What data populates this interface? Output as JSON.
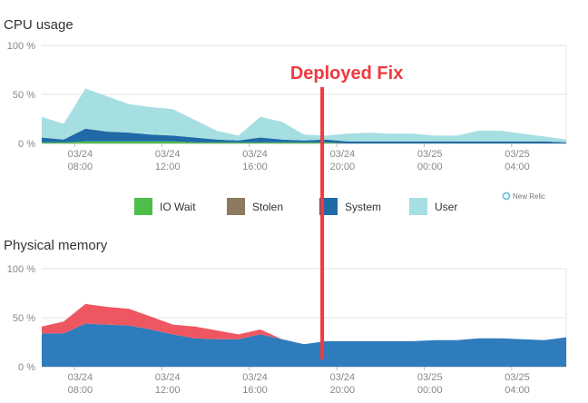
{
  "chart_data": [
    {
      "type": "area",
      "title": "CPU usage",
      "x": [
        "03/24 06:30",
        "03/24 07:30",
        "03/24 08:30",
        "03/24 09:30",
        "03/24 10:30",
        "03/24 11:30",
        "03/24 12:30",
        "03/24 13:30",
        "03/24 14:30",
        "03/24 15:30",
        "03/24 16:30",
        "03/24 17:30",
        "03/24 18:30",
        "03/24 19:30",
        "03/24 20:30",
        "03/24 21:30",
        "03/24 22:30",
        "03/24 23:30",
        "03/25 00:30",
        "03/25 01:30",
        "03/25 02:30",
        "03/25 03:30",
        "03/25 04:30",
        "03/25 05:30",
        "03/25 06:30"
      ],
      "series": [
        {
          "name": "IO Wait",
          "color": "#4dbe4a",
          "values": [
            1,
            1,
            2,
            2,
            2,
            2,
            2,
            1,
            1,
            1,
            1,
            1,
            1,
            1,
            0,
            0,
            0,
            0,
            0,
            0,
            0,
            0,
            0,
            0,
            0
          ]
        },
        {
          "name": "Stolen",
          "color": "#8c7a61",
          "values": [
            0,
            0,
            0,
            0,
            0,
            0,
            0,
            0,
            0,
            0,
            0,
            0,
            0,
            0,
            0,
            0,
            0,
            0,
            0,
            0,
            0,
            0,
            0,
            0,
            0
          ]
        },
        {
          "name": "System",
          "color": "#1f6aa7",
          "values": [
            5,
            3,
            13,
            10,
            9,
            7,
            6,
            5,
            3,
            2,
            5,
            3,
            2,
            3,
            2,
            2,
            2,
            2,
            2,
            2,
            2,
            2,
            2,
            2,
            1
          ]
        },
        {
          "name": "User",
          "color": "#a6dfe2",
          "values": [
            21,
            16,
            41,
            36,
            29,
            28,
            27,
            18,
            9,
            5,
            21,
            18,
            6,
            4,
            8,
            9,
            8,
            8,
            6,
            6,
            11,
            11,
            8,
            5,
            3
          ]
        }
      ],
      "yticks": [
        "0 %",
        "50 %",
        "100 %"
      ],
      "ylim": [
        0,
        100
      ],
      "xticks": [
        {
          "date": "03/24",
          "time": "08:00"
        },
        {
          "date": "03/24",
          "time": "12:00"
        },
        {
          "date": "03/24",
          "time": "16:00"
        },
        {
          "date": "03/24",
          "time": "20:00"
        },
        {
          "date": "03/25",
          "time": "00:00"
        },
        {
          "date": "03/25",
          "time": "04:00"
        }
      ],
      "legend_position": "bottom",
      "grid": true
    },
    {
      "type": "area",
      "title": "Physical memory",
      "x": [
        "03/24 06:30",
        "03/24 07:30",
        "03/24 08:30",
        "03/24 09:30",
        "03/24 10:30",
        "03/24 11:30",
        "03/24 12:30",
        "03/24 13:30",
        "03/24 14:30",
        "03/24 15:30",
        "03/24 16:30",
        "03/24 17:30",
        "03/24 18:30",
        "03/24 19:30",
        "03/24 20:30",
        "03/24 21:30",
        "03/24 22:30",
        "03/24 23:30",
        "03/25 00:30",
        "03/25 01:30",
        "03/25 02:30",
        "03/25 03:30",
        "03/25 04:30",
        "03/25 05:30",
        "03/25 06:30"
      ],
      "series": [
        {
          "color": "#2f7cbd",
          "values": [
            34,
            34,
            44,
            43,
            42,
            38,
            33,
            29,
            28,
            28,
            33,
            28,
            23,
            26,
            26,
            26,
            26,
            26,
            27,
            27,
            29,
            29,
            28,
            27,
            30
          ]
        },
        {
          "color": "#ee5761",
          "values": [
            7,
            12,
            20,
            18,
            17,
            13,
            10,
            12,
            9,
            5,
            5,
            0,
            0,
            0,
            0,
            0,
            0,
            0,
            0,
            0,
            0,
            0,
            0,
            0,
            0
          ]
        }
      ],
      "yticks": [
        "0 %",
        "50 %",
        "100 %"
      ],
      "ylim": [
        0,
        100
      ],
      "xticks": [
        {
          "date": "03/24",
          "time": "08:00"
        },
        {
          "date": "03/24",
          "time": "12:00"
        },
        {
          "date": "03/24",
          "time": "16:00"
        },
        {
          "date": "03/24",
          "time": "20:00"
        },
        {
          "date": "03/25",
          "time": "00:00"
        },
        {
          "date": "03/25",
          "time": "04:00"
        }
      ],
      "grid": true
    }
  ],
  "annotation": {
    "text": "Deployed Fix",
    "color": "#ef3a3f",
    "at": "03/24 19:20"
  },
  "branding": {
    "text": "New Relic"
  }
}
